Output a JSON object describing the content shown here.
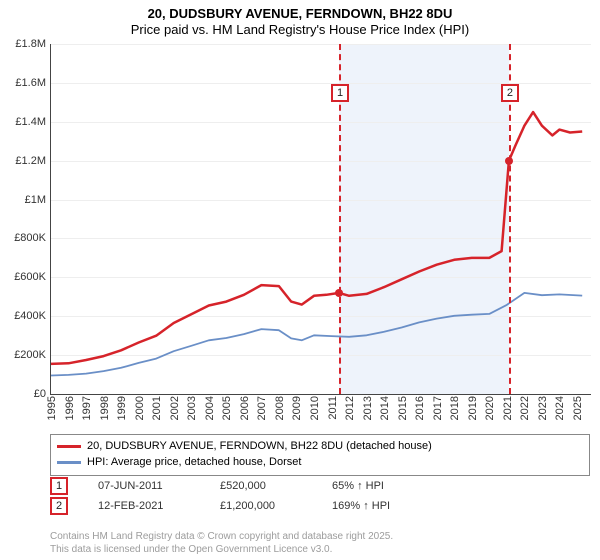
{
  "title": {
    "line1": "20, DUDSBURY AVENUE, FERNDOWN, BH22 8DU",
    "line2": "Price paid vs. HM Land Registry's House Price Index (HPI)"
  },
  "chart": {
    "type": "line",
    "xlim": [
      1995,
      2025.8
    ],
    "ylim": [
      0,
      1800000
    ],
    "ytick_step": 200000,
    "yticks": [
      "£0",
      "£200K",
      "£400K",
      "£600K",
      "£800K",
      "£1M",
      "£1.2M",
      "£1.4M",
      "£1.6M",
      "£1.8M"
    ],
    "xticks": [
      1995,
      1996,
      1997,
      1998,
      1999,
      2000,
      2001,
      2002,
      2003,
      2004,
      2005,
      2006,
      2007,
      2008,
      2009,
      2010,
      2011,
      2012,
      2013,
      2014,
      2015,
      2016,
      2017,
      2018,
      2019,
      2020,
      2021,
      2022,
      2023,
      2024,
      2025
    ],
    "background_color": "#ffffff",
    "grid_color": "#eeeeee",
    "axis_color": "#444444",
    "band": {
      "x_from": 2011.43,
      "x_to": 2021.12,
      "fill": "#eef3fb"
    },
    "series": [
      {
        "name": "20, DUDSBURY AVENUE, FERNDOWN, BH22 8DU (detached house)",
        "color": "#d6232a",
        "line_width": 2.5,
        "points": [
          [
            1995,
            155000
          ],
          [
            1996,
            158000
          ],
          [
            1997,
            175000
          ],
          [
            1998,
            195000
          ],
          [
            1999,
            225000
          ],
          [
            2000,
            265000
          ],
          [
            2001,
            300000
          ],
          [
            2002,
            365000
          ],
          [
            2003,
            410000
          ],
          [
            2004,
            455000
          ],
          [
            2005,
            475000
          ],
          [
            2006,
            510000
          ],
          [
            2007,
            560000
          ],
          [
            2008,
            555000
          ],
          [
            2008.7,
            475000
          ],
          [
            2009.3,
            460000
          ],
          [
            2010,
            505000
          ],
          [
            2010.7,
            510000
          ],
          [
            2011.43,
            520000
          ],
          [
            2012,
            505000
          ],
          [
            2013,
            515000
          ],
          [
            2014,
            550000
          ],
          [
            2015,
            590000
          ],
          [
            2016,
            630000
          ],
          [
            2017,
            665000
          ],
          [
            2018,
            690000
          ],
          [
            2019,
            700000
          ],
          [
            2020,
            700000
          ],
          [
            2020.7,
            735000
          ],
          [
            2021.12,
            1200000
          ],
          [
            2021.5,
            1280000
          ],
          [
            2022,
            1380000
          ],
          [
            2022.5,
            1450000
          ],
          [
            2023,
            1380000
          ],
          [
            2023.6,
            1330000
          ],
          [
            2024,
            1360000
          ],
          [
            2024.6,
            1345000
          ],
          [
            2025.3,
            1350000
          ]
        ]
      },
      {
        "name": "HPI: Average price, detached house, Dorset",
        "color": "#6a8fc7",
        "line_width": 1.8,
        "points": [
          [
            1995,
            95000
          ],
          [
            1996,
            98000
          ],
          [
            1997,
            105000
          ],
          [
            1998,
            118000
          ],
          [
            1999,
            135000
          ],
          [
            2000,
            160000
          ],
          [
            2001,
            182000
          ],
          [
            2002,
            220000
          ],
          [
            2003,
            248000
          ],
          [
            2004,
            276000
          ],
          [
            2005,
            288000
          ],
          [
            2006,
            308000
          ],
          [
            2007,
            334000
          ],
          [
            2008,
            328000
          ],
          [
            2008.7,
            286000
          ],
          [
            2009.3,
            276000
          ],
          [
            2010,
            302000
          ],
          [
            2011,
            298000
          ],
          [
            2012,
            294000
          ],
          [
            2013,
            302000
          ],
          [
            2014,
            320000
          ],
          [
            2015,
            342000
          ],
          [
            2016,
            368000
          ],
          [
            2017,
            388000
          ],
          [
            2018,
            402000
          ],
          [
            2019,
            408000
          ],
          [
            2020,
            412000
          ],
          [
            2021,
            458000
          ],
          [
            2022,
            520000
          ],
          [
            2023,
            508000
          ],
          [
            2024,
            512000
          ],
          [
            2025.3,
            506000
          ]
        ]
      }
    ],
    "markers": [
      {
        "label": "1",
        "x": 2011.43,
        "y": 520000,
        "dot_color": "#d6232a"
      },
      {
        "label": "2",
        "x": 2021.12,
        "y": 1200000,
        "dot_color": "#d6232a"
      }
    ]
  },
  "legend": {
    "items": [
      {
        "color": "#d6232a",
        "label": "20, DUDSBURY AVENUE, FERNDOWN, BH22 8DU (detached house)"
      },
      {
        "color": "#6a8fc7",
        "label": "HPI: Average price, detached house, Dorset"
      }
    ]
  },
  "sales": [
    {
      "marker": "1",
      "date": "07-JUN-2011",
      "price": "£520,000",
      "pct": "65% ↑ HPI"
    },
    {
      "marker": "2",
      "date": "12-FEB-2021",
      "price": "£1,200,000",
      "pct": "169% ↑ HPI"
    }
  ],
  "attribution": {
    "line1": "Contains HM Land Registry data © Crown copyright and database right 2025.",
    "line2": "This data is licensed under the Open Government Licence v3.0."
  }
}
